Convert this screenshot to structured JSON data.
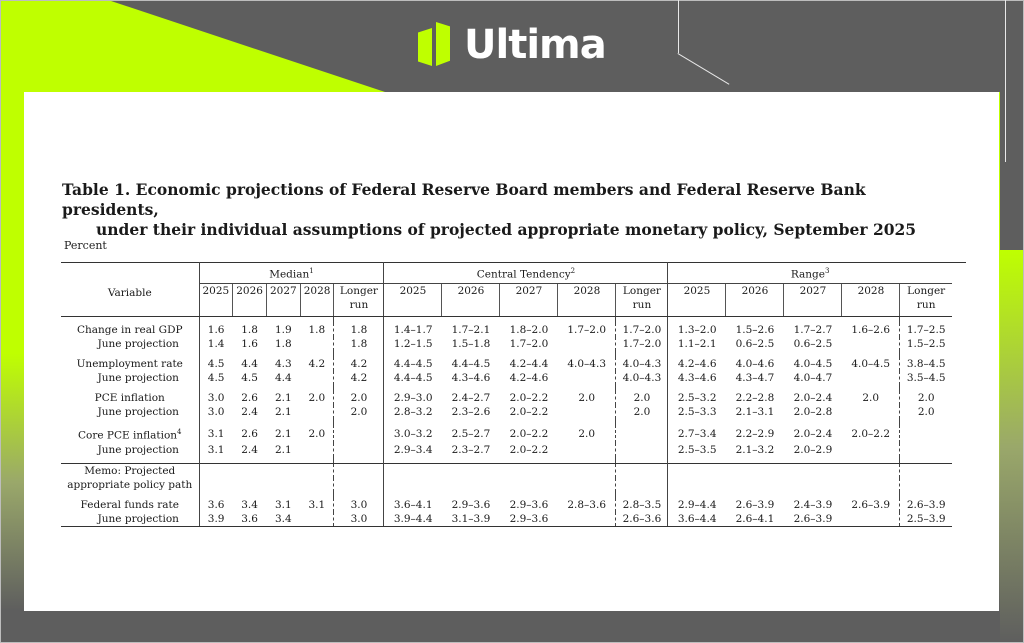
{
  "brand": {
    "name": "Ultima",
    "accent": "#bfff00",
    "background": "#5e5e5e"
  },
  "document": {
    "title_line1": "Table 1. Economic projections of Federal Reserve Board members and Federal Reserve Bank presidents,",
    "title_line2": "under their individual assumptions of projected appropriate monetary policy, September 2025",
    "unit": "Percent"
  },
  "table": {
    "variable_header": "Variable",
    "groups": [
      {
        "label": "Median",
        "note": "1"
      },
      {
        "label": "Central Tendency",
        "note": "2"
      },
      {
        "label": "Range",
        "note": "3"
      }
    ],
    "years": [
      "2025",
      "2026",
      "2027",
      "2028"
    ],
    "longer_run_line1": "Longer",
    "longer_run_line2": "run",
    "rows": [
      {
        "label": "Change in real GDP",
        "sub": false,
        "median": [
          "1.6",
          "1.8",
          "1.9",
          "1.8",
          "1.8"
        ],
        "central": [
          "1.4–1.7",
          "1.7–2.1",
          "1.8–2.0",
          "1.7–2.0",
          "1.7–2.0"
        ],
        "range": [
          "1.3–2.0",
          "1.5–2.6",
          "1.7–2.7",
          "1.6–2.6",
          "1.7–2.5"
        ]
      },
      {
        "label": "June projection",
        "sub": true,
        "median": [
          "1.4",
          "1.6",
          "1.8",
          "",
          "1.8"
        ],
        "central": [
          "1.2–1.5",
          "1.5–1.8",
          "1.7–2.0",
          "",
          "1.7–2.0"
        ],
        "range": [
          "1.1–2.1",
          "0.6–2.5",
          "0.6–2.5",
          "",
          "1.5–2.5"
        ]
      },
      {
        "label": "Unemployment rate",
        "sub": false,
        "median": [
          "4.5",
          "4.4",
          "4.3",
          "4.2",
          "4.2"
        ],
        "central": [
          "4.4–4.5",
          "4.4–4.5",
          "4.2–4.4",
          "4.0–4.3",
          "4.0–4.3"
        ],
        "range": [
          "4.2–4.6",
          "4.0–4.6",
          "4.0–4.5",
          "4.0–4.5",
          "3.8–4.5"
        ]
      },
      {
        "label": "June projection",
        "sub": true,
        "median": [
          "4.5",
          "4.5",
          "4.4",
          "",
          "4.2"
        ],
        "central": [
          "4.4–4.5",
          "4.3–4.6",
          "4.2–4.6",
          "",
          "4.0–4.3"
        ],
        "range": [
          "4.3–4.6",
          "4.3–4.7",
          "4.0–4.7",
          "",
          "3.5–4.5"
        ]
      },
      {
        "label": "PCE inflation",
        "sub": false,
        "median": [
          "3.0",
          "2.6",
          "2.1",
          "2.0",
          "2.0"
        ],
        "central": [
          "2.9–3.0",
          "2.4–2.7",
          "2.0–2.2",
          "2.0",
          "2.0"
        ],
        "range": [
          "2.5–3.2",
          "2.2–2.8",
          "2.0–2.4",
          "2.0",
          "2.0"
        ]
      },
      {
        "label": "June projection",
        "sub": true,
        "median": [
          "3.0",
          "2.4",
          "2.1",
          "",
          "2.0"
        ],
        "central": [
          "2.8–3.2",
          "2.3–2.6",
          "2.0–2.2",
          "",
          "2.0"
        ],
        "range": [
          "2.5–3.3",
          "2.1–3.1",
          "2.0–2.8",
          "",
          "2.0"
        ]
      },
      {
        "label": "Core PCE inflation",
        "note": "4",
        "sub": false,
        "median": [
          "3.1",
          "2.6",
          "2.1",
          "2.0",
          ""
        ],
        "central": [
          "3.0–3.2",
          "2.5–2.7",
          "2.0–2.2",
          "2.0",
          ""
        ],
        "range": [
          "2.7–3.4",
          "2.2–2.9",
          "2.0–2.4",
          "2.0–2.2",
          ""
        ]
      },
      {
        "label": "June projection",
        "sub": true,
        "median": [
          "3.1",
          "2.4",
          "2.1",
          "",
          ""
        ],
        "central": [
          "2.9–3.4",
          "2.3–2.7",
          "2.0–2.2",
          "",
          ""
        ],
        "range": [
          "2.5–3.5",
          "2.1–3.2",
          "2.0–2.9",
          "",
          ""
        ]
      }
    ],
    "memo_line1": "Memo: Projected",
    "memo_line2": "appropriate policy path",
    "memo_rows": [
      {
        "label": "Federal funds rate",
        "sub": false,
        "median": [
          "3.6",
          "3.4",
          "3.1",
          "3.1",
          "3.0"
        ],
        "central": [
          "3.6–4.1",
          "2.9–3.6",
          "2.9–3.6",
          "2.8–3.6",
          "2.8–3.5"
        ],
        "range": [
          "2.9–4.4",
          "2.6–3.9",
          "2.4–3.9",
          "2.6–3.9",
          "2.6–3.9"
        ]
      },
      {
        "label": "June projection",
        "sub": true,
        "median": [
          "3.9",
          "3.6",
          "3.4",
          "",
          "3.0"
        ],
        "central": [
          "3.9–4.4",
          "3.1–3.9",
          "2.9–3.6",
          "",
          "2.6–3.6"
        ],
        "range": [
          "3.6–4.4",
          "2.6–4.1",
          "2.6–3.9",
          "",
          "2.5–3.9"
        ]
      }
    ]
  }
}
